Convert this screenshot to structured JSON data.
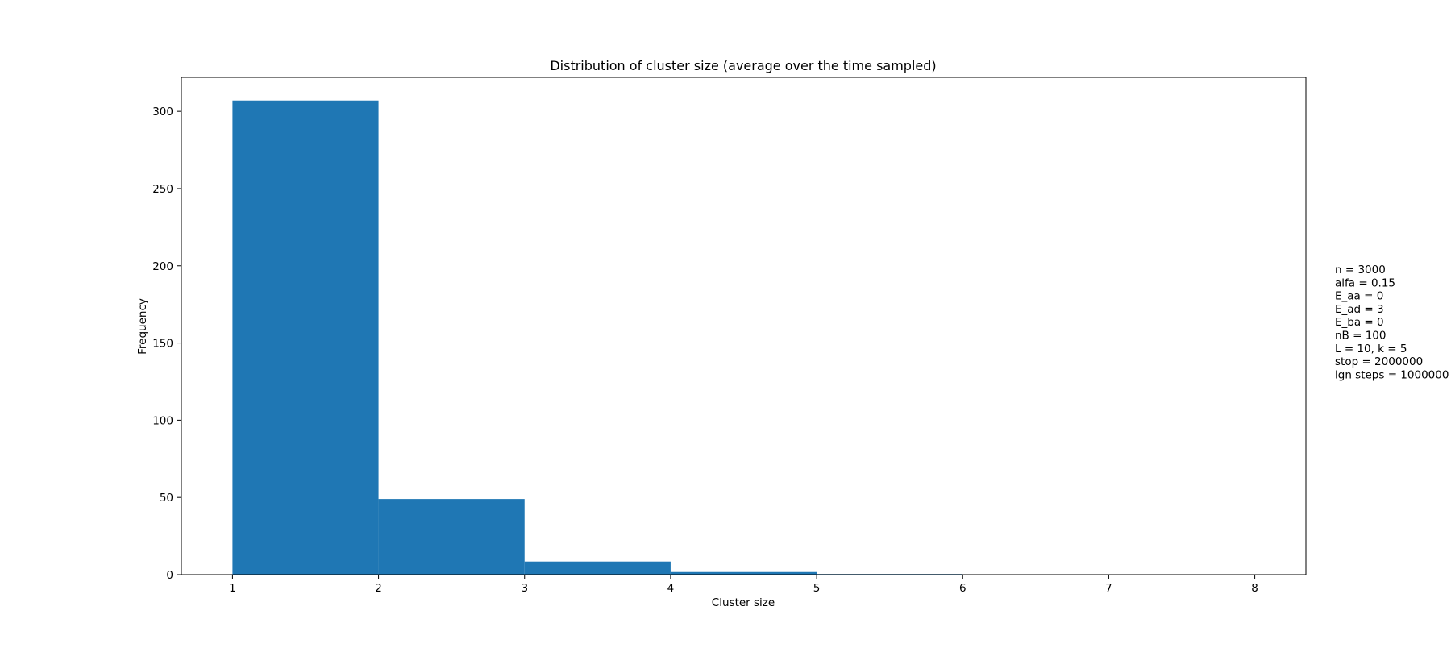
{
  "chart_data": {
    "type": "bar",
    "title": "Distribution of cluster size (average over the time sampled)",
    "xlabel": "Cluster size",
    "ylabel": "Frequency",
    "bin_edges": [
      1,
      2,
      3,
      4,
      5,
      6,
      7,
      8
    ],
    "values": [
      307,
      49,
      8.5,
      1.7,
      0.4,
      0.08,
      0.02
    ],
    "xlim": [
      0.65,
      8.35
    ],
    "ylim": [
      0,
      322
    ],
    "xticks": [
      1,
      2,
      3,
      4,
      5,
      6,
      7,
      8
    ],
    "yticks": [
      0,
      50,
      100,
      150,
      200,
      250,
      300
    ],
    "bar_color": "#1f77b4",
    "grid": false,
    "legend": "none"
  },
  "annotation_lines": [
    "n = 3000",
    "alfa = 0.15",
    "E_aa = 0",
    "E_ad = 3",
    "E_ba = 0",
    "nB = 100",
    "L = 10, k = 5",
    "stop = 2000000",
    "ign steps = 1000000"
  ]
}
